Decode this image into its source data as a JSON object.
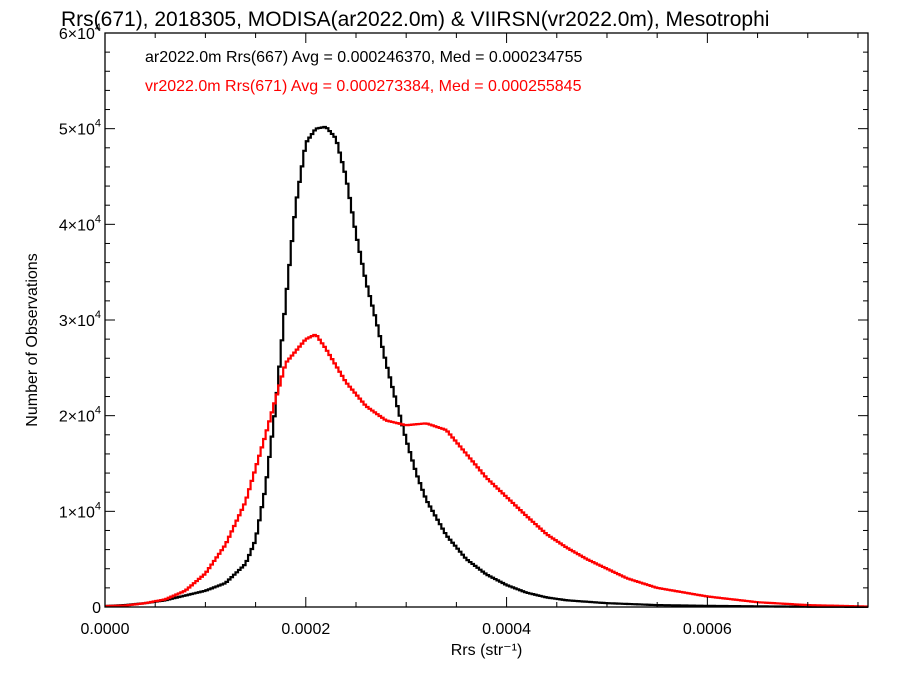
{
  "chart_data": {
    "type": "line",
    "title": "Rrs(671), 2018305, MODISA(ar2022.0m) & VIIRSN(vr2022.0m), Mesotrophi",
    "xlabel": "Rrs (str⁻¹)",
    "ylabel": "Number of Observations",
    "xlim": [
      0,
      0.00076
    ],
    "ylim": [
      0,
      60000
    ],
    "x_ticks": [
      0.0,
      0.0002,
      0.0004,
      0.0006
    ],
    "x_tick_labels": [
      "0.0000",
      "0.0002",
      "0.0004",
      "0.0006"
    ],
    "y_ticks": [
      0,
      10000,
      20000,
      30000,
      40000,
      50000,
      60000
    ],
    "y_tick_labels": [
      {
        "mantissa": "0",
        "exp": ""
      },
      {
        "mantissa": "1×10",
        "exp": "4"
      },
      {
        "mantissa": "2×10",
        "exp": "4"
      },
      {
        "mantissa": "3×10",
        "exp": "4"
      },
      {
        "mantissa": "4×10",
        "exp": "4"
      },
      {
        "mantissa": "5×10",
        "exp": "4"
      },
      {
        "mantissa": "6×10",
        "exp": "4"
      }
    ],
    "legend": [
      {
        "text": "ar2022.0m Rrs(667) Avg = 0.000246370, Med = 0.000234755",
        "color": "#000000"
      },
      {
        "text": "vr2022.0m Rrs(671) Avg = 0.000273384, Med = 0.000255845",
        "color": "#ff0000"
      }
    ],
    "series": [
      {
        "color": "#000000",
        "x": [
          0.0,
          2e-05,
          4e-05,
          6e-05,
          8e-05,
          0.0001,
          0.00012,
          0.00014,
          0.00015,
          0.00016,
          0.00017,
          0.00018,
          0.00019,
          0.0002,
          0.00021,
          0.00022,
          0.00023,
          0.00024,
          0.00025,
          0.00026,
          0.00027,
          0.00028,
          0.00029,
          0.0003,
          0.00031,
          0.00032,
          0.00034,
          0.00036,
          0.00038,
          0.0004,
          0.00042,
          0.00044,
          0.00046,
          0.0005,
          0.00055,
          0.0006,
          0.00065,
          0.0007,
          0.00076
        ],
        "values": [
          100,
          200,
          400,
          700,
          1200,
          1700,
          2500,
          4500,
          7000,
          12500,
          21000,
          32000,
          42000,
          48500,
          50000,
          50200,
          49000,
          45000,
          39000,
          34000,
          30000,
          25500,
          21500,
          17500,
          14000,
          11200,
          7500,
          5000,
          3400,
          2300,
          1500,
          1000,
          700,
          400,
          200,
          120,
          70,
          30,
          10
        ]
      },
      {
        "color": "#ff0000",
        "x": [
          0.0,
          2e-05,
          4e-05,
          6e-05,
          8e-05,
          0.0001,
          0.00012,
          0.00014,
          0.00016,
          0.00018,
          0.0002,
          0.00021,
          0.00022,
          0.00024,
          0.00026,
          0.00028,
          0.0003,
          0.00032,
          0.00034,
          0.00036,
          0.00038,
          0.0004,
          0.00042,
          0.00044,
          0.00046,
          0.00048,
          0.0005,
          0.00052,
          0.00055,
          0.0006,
          0.00065,
          0.0007,
          0.00076
        ],
        "values": [
          100,
          150,
          400,
          800,
          1700,
          3500,
          6500,
          11000,
          18000,
          25500,
          28000,
          28500,
          27000,
          23500,
          21000,
          19500,
          19000,
          19200,
          18500,
          16000,
          13500,
          11500,
          9500,
          7600,
          6200,
          5000,
          4000,
          3000,
          2000,
          1100,
          500,
          200,
          50
        ]
      }
    ]
  }
}
